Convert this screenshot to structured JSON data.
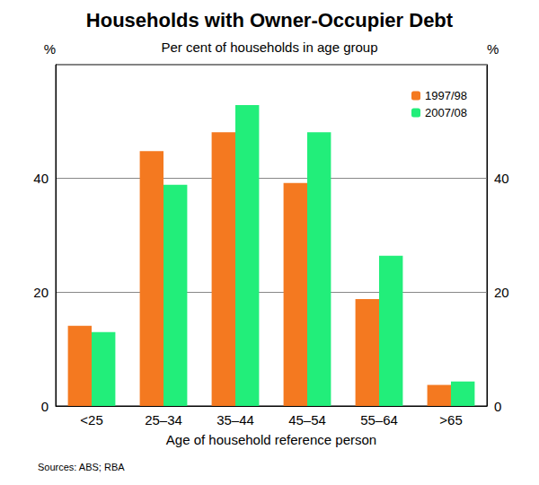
{
  "chart_data": {
    "type": "bar",
    "title": "Households with Owner-Occupier Debt",
    "subtitle": "Per cent of households in age group",
    "y_label": "%",
    "x_label": "Age of household reference person",
    "source": "Sources: ABS; RBA",
    "categories": [
      "<25",
      "25–34",
      "35–44",
      "45–54",
      "55–64",
      ">65"
    ],
    "series": [
      {
        "name": "1997/98",
        "color": "#f47920",
        "values": [
          14.1,
          44.8,
          48.1,
          39.2,
          18.8,
          3.7
        ]
      },
      {
        "name": "2007/08",
        "color": "#22ee7a",
        "values": [
          13.0,
          38.9,
          52.9,
          48.1,
          26.4,
          4.3
        ]
      }
    ],
    "ylim": [
      0,
      60
    ],
    "yticks": [
      0,
      20,
      40
    ],
    "grid": true,
    "legend": "upper right"
  }
}
